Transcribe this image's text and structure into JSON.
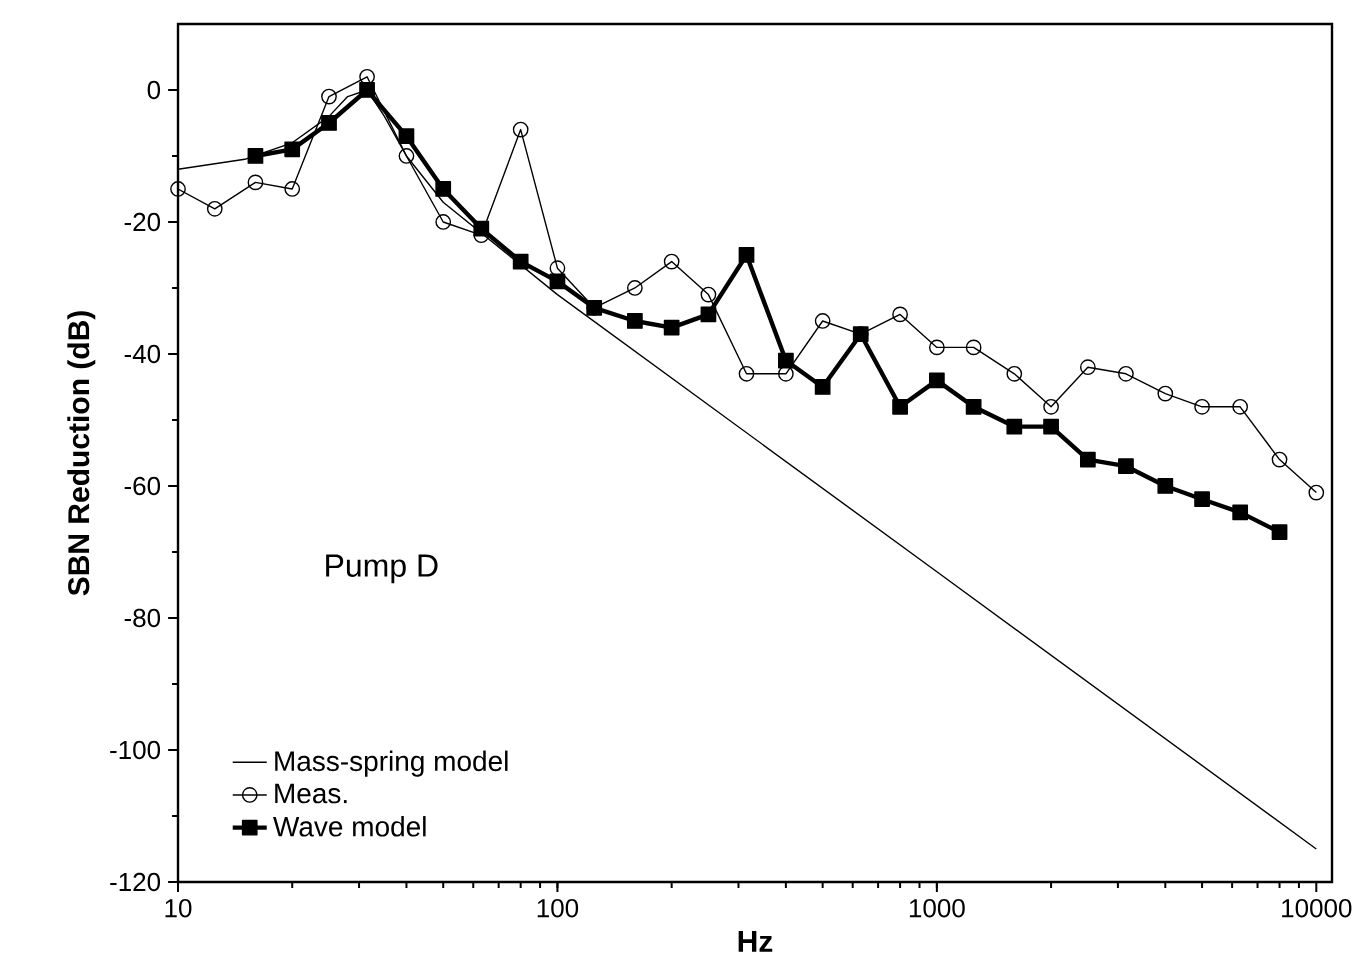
{
  "chart_data": {
    "type": "line",
    "xlabel": "Hz",
    "ylabel": "SBN Reduction (dB)",
    "log": "x",
    "xlim": [
      10,
      11000
    ],
    "ylim": [
      -120,
      10
    ],
    "xticks": [
      10,
      100,
      1000,
      10000
    ],
    "yticks": [
      -120,
      -100,
      -80,
      -60,
      -40,
      -20,
      0
    ],
    "grid": false,
    "legend": "bottom left",
    "annotations": [
      "Pump D"
    ],
    "series": [
      {
        "name": "Mass-spring model",
        "color": "#000000",
        "marker": "none",
        "line_style": "solid",
        "x": [
          10,
          15,
          20,
          25,
          28,
          31.5,
          35,
          40,
          50,
          100,
          1000,
          10000
        ],
        "values": [
          -12,
          -10.5,
          -8,
          -4,
          -1,
          0,
          -4,
          -10,
          -17,
          -31,
          -73,
          -115
        ]
      },
      {
        "name": "Meas.",
        "color": "#000000",
        "marker": "circle",
        "line_style": "solid",
        "x": [
          10,
          12.5,
          16,
          20,
          25,
          31.5,
          40,
          50,
          63,
          80,
          100,
          125,
          160,
          200,
          250,
          315,
          400,
          500,
          630,
          800,
          1000,
          1250,
          1600,
          2000,
          2500,
          3150,
          4000,
          5000,
          6300,
          8000,
          10000
        ],
        "values": [
          -15,
          -18,
          -14,
          -15,
          -1,
          2,
          -10,
          -20,
          -22,
          -6,
          -27,
          -33,
          -30,
          -26,
          -31,
          -43,
          -43,
          -35,
          -37,
          -34,
          -39,
          -39,
          -43,
          -48,
          -42,
          -43,
          -46,
          -48,
          -48,
          -56,
          -61
        ]
      },
      {
        "name": "Wave model",
        "color": "#000000",
        "marker": "square",
        "line_style": "solid",
        "x": [
          16,
          20,
          25,
          31.5,
          40,
          50,
          63,
          80,
          100,
          125,
          160,
          200,
          250,
          315,
          400,
          500,
          630,
          800,
          1000,
          1250,
          1600,
          2000,
          2500,
          3150,
          4000,
          5000,
          6300,
          8000
        ],
        "values": [
          -10,
          -9,
          -5,
          0,
          -7,
          -15,
          -21,
          -26,
          -29,
          -33,
          -35,
          -36,
          -34,
          -25,
          -41,
          -45,
          -37,
          -48,
          -44,
          -48,
          -51,
          -51,
          -56,
          -57,
          -60,
          -62,
          -64,
          -67
        ]
      }
    ]
  }
}
